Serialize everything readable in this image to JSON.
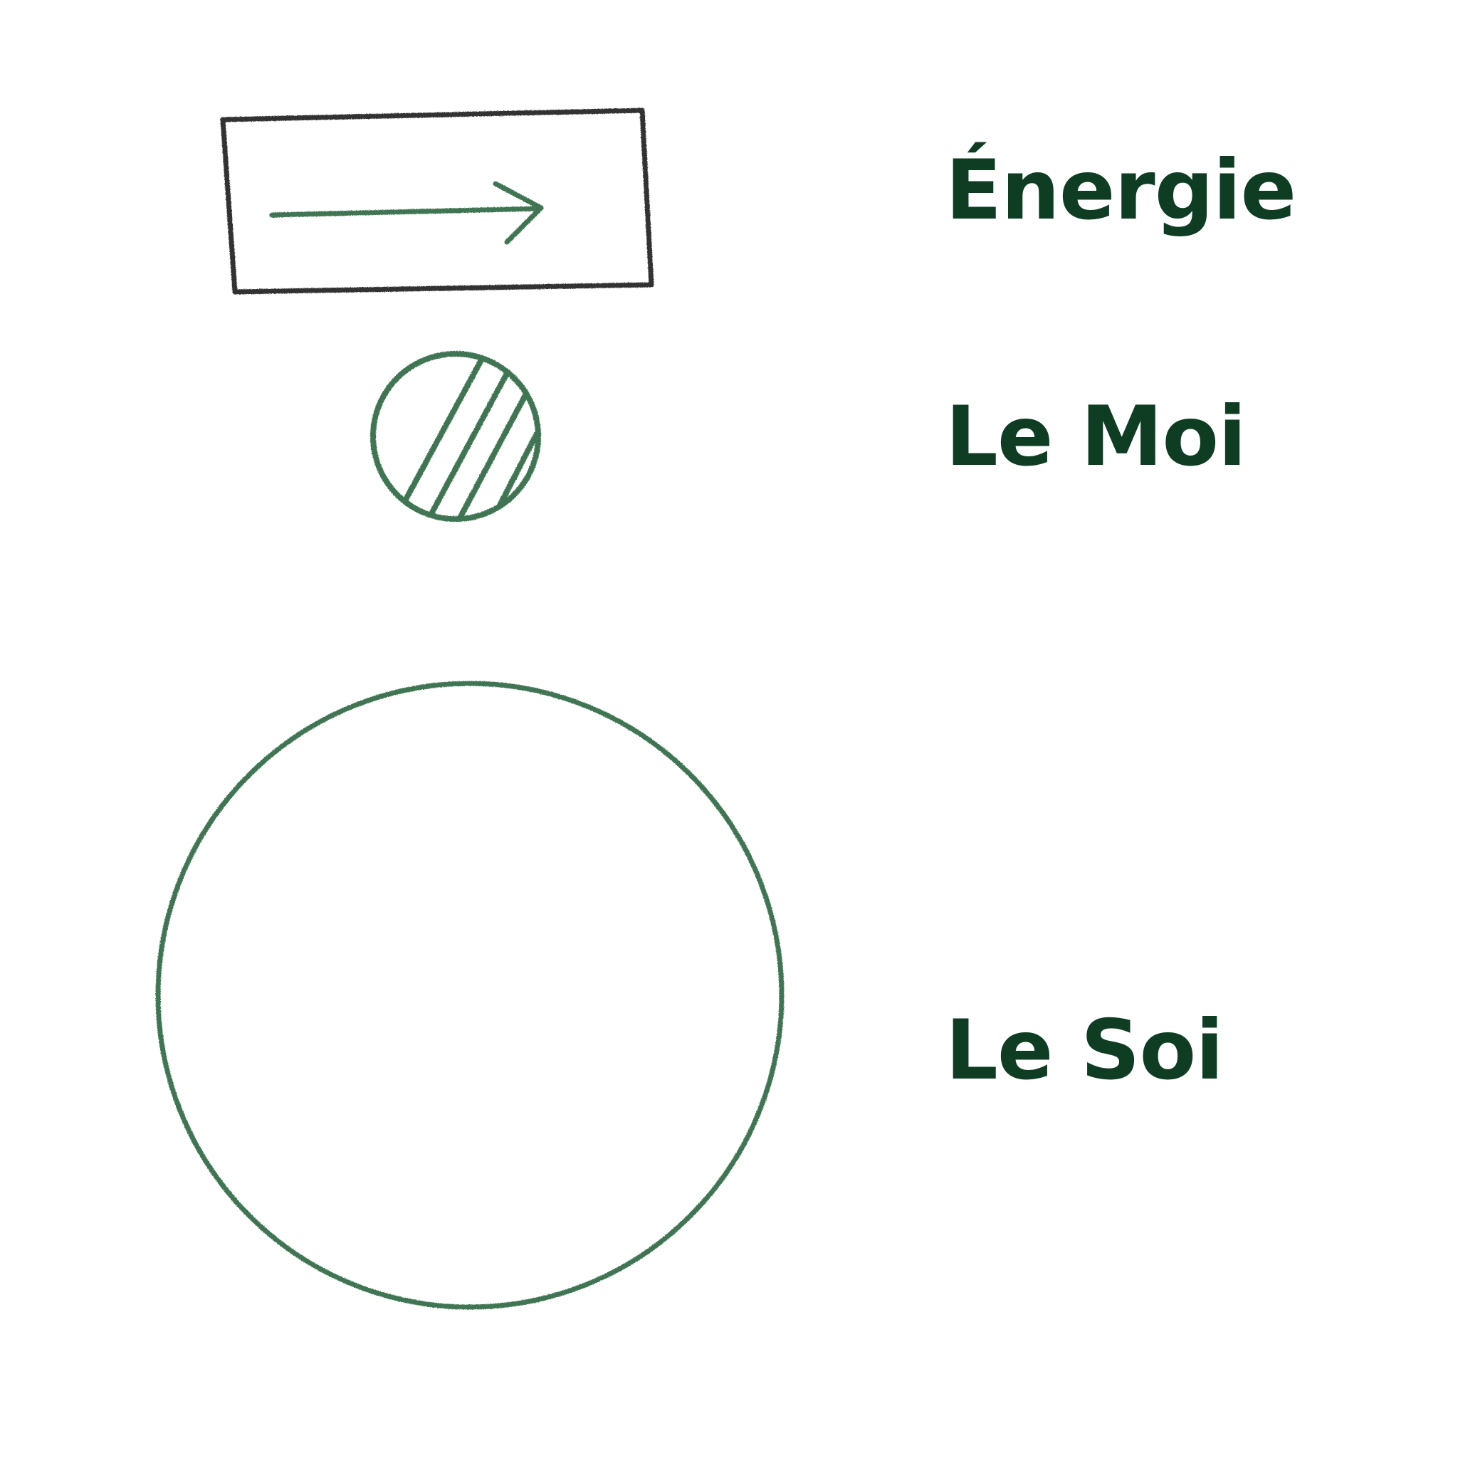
{
  "colors": {
    "background": "#ffffff",
    "label_text": "#0f3d24",
    "symbol_green": "#3f7452",
    "box_outline": "#333333"
  },
  "legend": [
    {
      "symbol": "arrow-in-rectangle",
      "label": "Énergie"
    },
    {
      "symbol": "hatched-small-circle",
      "label": "Le Moi"
    },
    {
      "symbol": "large-open-circle",
      "label": "Le Soi"
    }
  ]
}
